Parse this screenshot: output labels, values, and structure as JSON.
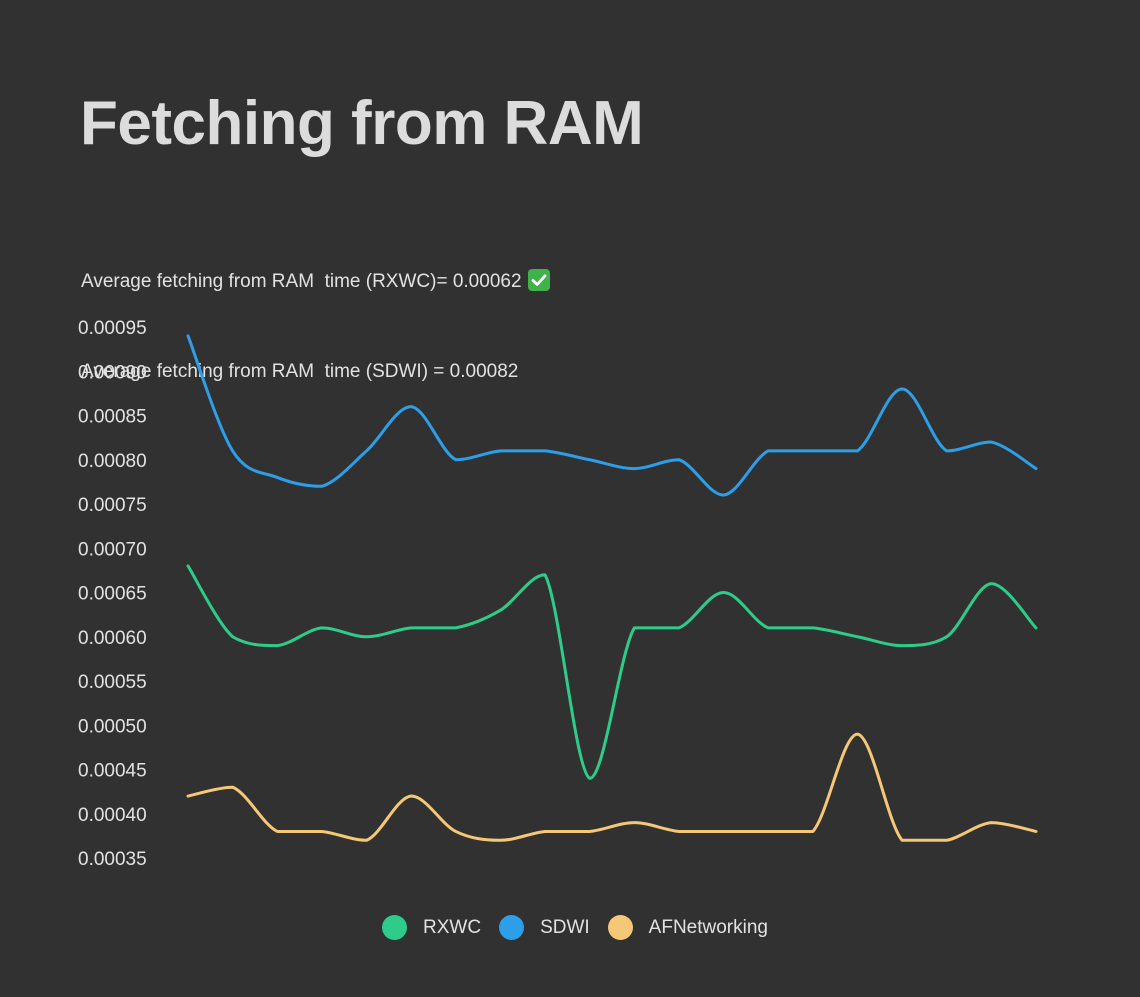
{
  "title": "Fetching from RAM",
  "summary": {
    "line1": "Average fetching from RAM  time (RXWC)= 0.00062",
    "line1_icon": "check-mark-icon",
    "line2": "Average fetching from RAM  time (SDWI) = 0.00082"
  },
  "chart_data": {
    "type": "line",
    "title": "",
    "xlabel": "",
    "ylabel": "",
    "grid": false,
    "smooth": true,
    "legend_position": "bottom-center",
    "ylim": [
      0.00035,
      0.00095
    ],
    "yticks": [
      "0.00095",
      "0.00090",
      "0.00085",
      "0.00080",
      "0.00075",
      "0.00070",
      "0.00065",
      "0.00060",
      "0.00055",
      "0.00050",
      "0.00045",
      "0.00040",
      "0.00035"
    ],
    "x": [
      1,
      2,
      3,
      4,
      5,
      6,
      7,
      8,
      9,
      10,
      11,
      12,
      13,
      14,
      15,
      16,
      17,
      18,
      19,
      20
    ],
    "series": [
      {
        "name": "RXWC",
        "color": "#2ecc8a",
        "values": [
          0.00068,
          0.0006,
          0.00059,
          0.00061,
          0.0006,
          0.00061,
          0.00061,
          0.00063,
          0.00067,
          0.00044,
          0.00061,
          0.00061,
          0.00065,
          0.00061,
          0.00061,
          0.0006,
          0.00059,
          0.0006,
          0.00066,
          0.00061
        ]
      },
      {
        "name": "SDWI",
        "color": "#2d9ee8",
        "values": [
          0.00094,
          0.00081,
          0.00078,
          0.00077,
          0.00081,
          0.00086,
          0.0008,
          0.00081,
          0.00081,
          0.0008,
          0.00079,
          0.0008,
          0.00076,
          0.00081,
          0.00081,
          0.00081,
          0.00088,
          0.00081,
          0.00082,
          0.00079
        ]
      },
      {
        "name": "AFNetworking",
        "color": "#f5c878",
        "values": [
          0.00042,
          0.00043,
          0.00038,
          0.00038,
          0.00037,
          0.00042,
          0.00038,
          0.00037,
          0.00038,
          0.00038,
          0.00039,
          0.00038,
          0.00038,
          0.00038,
          0.00038,
          0.00049,
          0.00037,
          0.00037,
          0.00039,
          0.00038
        ]
      }
    ]
  }
}
